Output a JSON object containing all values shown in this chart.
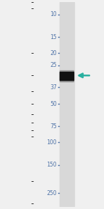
{
  "bg_color": "#f0f0f0",
  "lane_bg_color": "#d8d8d8",
  "label_color": "#4a6fa5",
  "tick_color": "#4a6fa5",
  "band_dark_color": "#111111",
  "band_soft_color": "#555555",
  "arrow_color": "#2ab0a0",
  "marker_labels": [
    "250",
    "150",
    "100",
    "75",
    "50",
    "37",
    "25",
    "20",
    "15",
    "10"
  ],
  "marker_kda": [
    250,
    150,
    100,
    75,
    50,
    37,
    25,
    20,
    15,
    10
  ],
  "band_kda": 30,
  "figsize": [
    1.5,
    3.0
  ],
  "dpi": 100,
  "kda_min": 8,
  "kda_max": 320
}
